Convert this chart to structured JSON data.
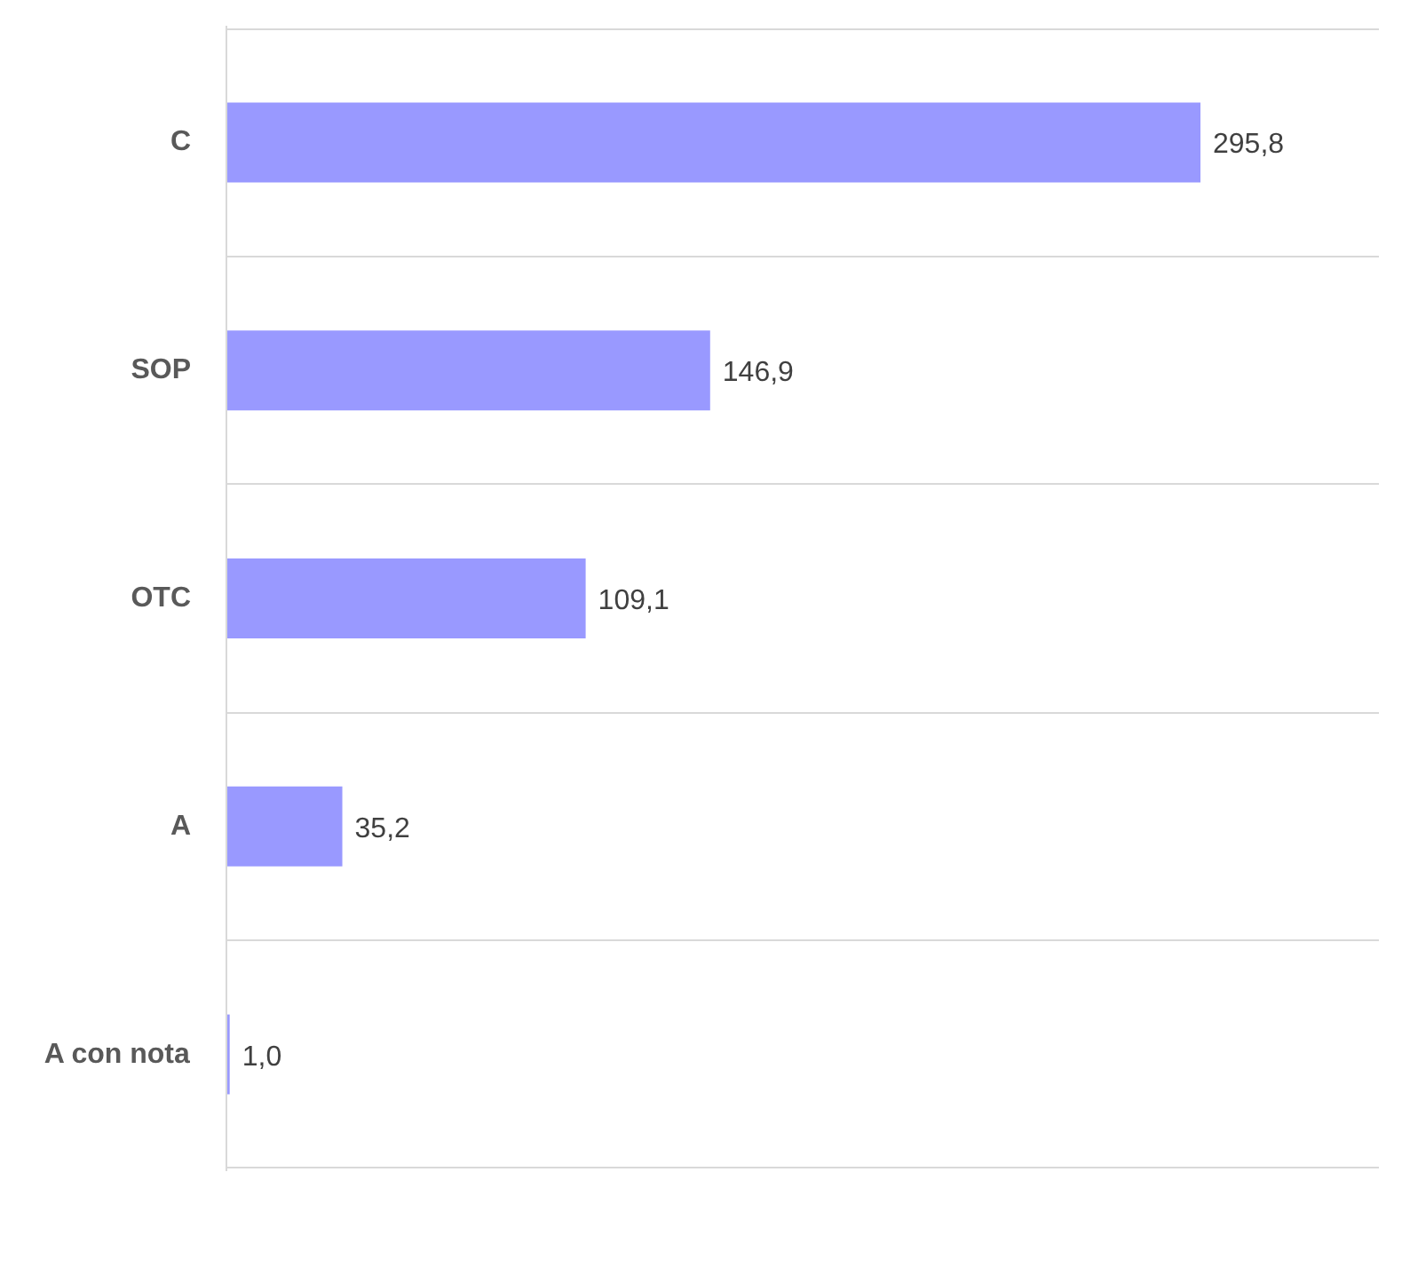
{
  "chart_data": {
    "type": "bar",
    "orientation": "horizontal",
    "categories": [
      "C",
      "SOP",
      "OTC",
      "A",
      "A con nota"
    ],
    "values": [
      295.8,
      146.9,
      109.1,
      35.2,
      1.0
    ],
    "color": "#9999ff",
    "value_labels": [
      "295,8",
      "146,9",
      "109,1",
      "35,2",
      "1,0"
    ],
    "xlim": [
      0,
      350
    ],
    "grid": "y",
    "tick_labels": "y"
  }
}
